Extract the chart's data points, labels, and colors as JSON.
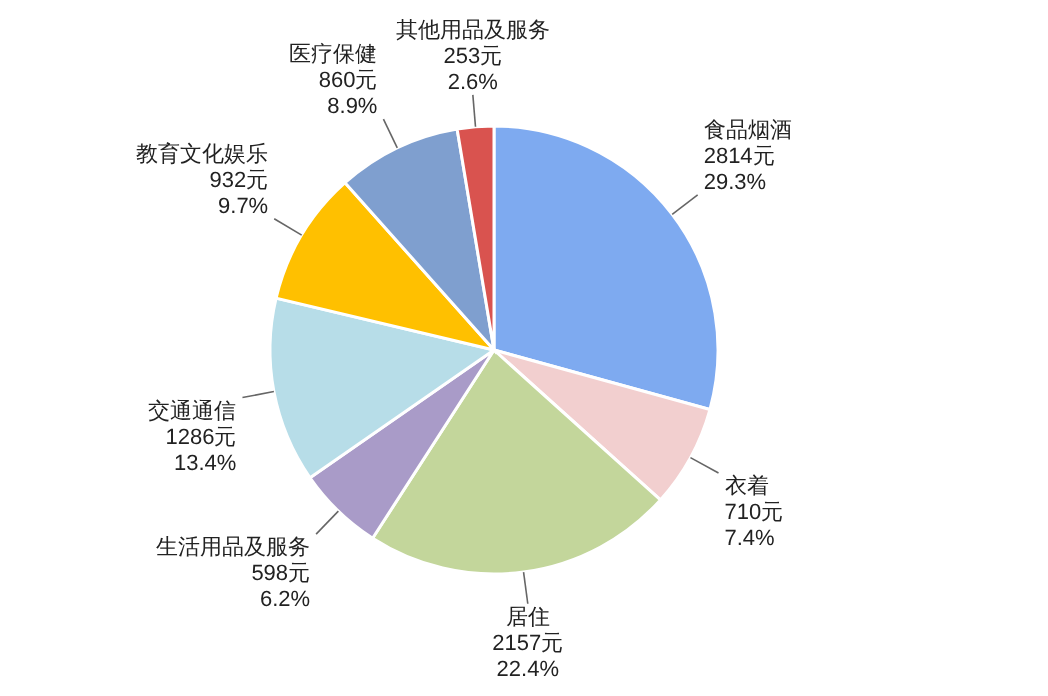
{
  "chart_data": {
    "type": "pie",
    "categories": [
      "食品烟酒",
      "衣着",
      "居住",
      "生活用品及服务",
      "交通通信",
      "教育文化娱乐",
      "医疗保健",
      "其他用品及服务"
    ],
    "values": [
      2814,
      710,
      2157,
      598,
      1286,
      932,
      860,
      253
    ],
    "value_labels": [
      "2814元\n29.3%",
      "710元\n7.4%",
      "2157元\n22.4%",
      "598元\n6.2%",
      "1286元\n13.4%",
      "932元\n9.7%",
      "860元\n8.9%",
      "253元\n2.6%"
    ],
    "colors": [
      "#7eaaf0",
      "#f2cfcf",
      "#c3d69b",
      "#a99bc8",
      "#b7dde8",
      "#ffc000",
      "#7f9fcf",
      "#d9534f"
    ]
  }
}
